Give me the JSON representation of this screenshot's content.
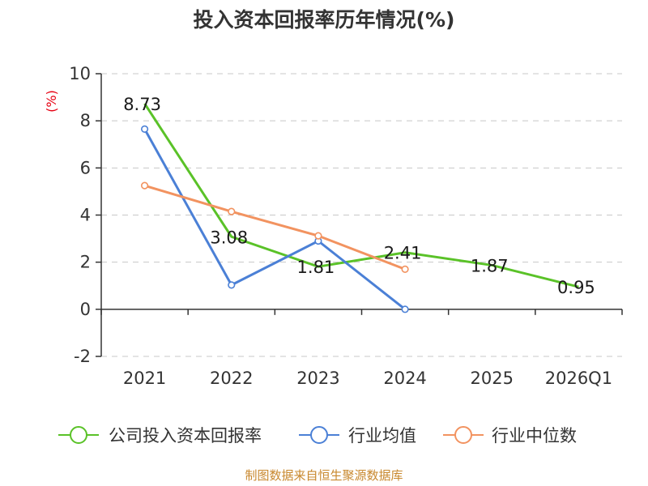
{
  "chart_data": {
    "type": "line",
    "title": "投入资本回报率历年情况(%)",
    "ylabel": "(%)",
    "xlabel": "",
    "categories": [
      "2021",
      "2022",
      "2023",
      "2024",
      "2025",
      "2026Q1"
    ],
    "ylim": [
      -2,
      10
    ],
    "yticks": [
      -2,
      0,
      2,
      4,
      6,
      8,
      10
    ],
    "grid": true,
    "legend_position": "bottom",
    "series": [
      {
        "name": "公司投入资本回报率",
        "color": "#5ac228",
        "values": [
          8.73,
          3.08,
          1.81,
          2.41,
          1.87,
          0.95
        ],
        "labels": [
          "8.73",
          "3.08",
          "1.81",
          "2.41",
          "1.87",
          "0.95"
        ],
        "show_markers": false
      },
      {
        "name": "行业均值",
        "color": "#4b80d6",
        "values": [
          7.65,
          1.03,
          2.9,
          0.0,
          null,
          null
        ],
        "show_markers": true
      },
      {
        "name": "行业中位数",
        "color": "#f29360",
        "values": [
          5.25,
          4.15,
          3.12,
          1.7,
          null,
          null
        ],
        "show_markers": true
      }
    ]
  },
  "footer": {
    "source": "制图数据来自恒生聚源数据库"
  }
}
